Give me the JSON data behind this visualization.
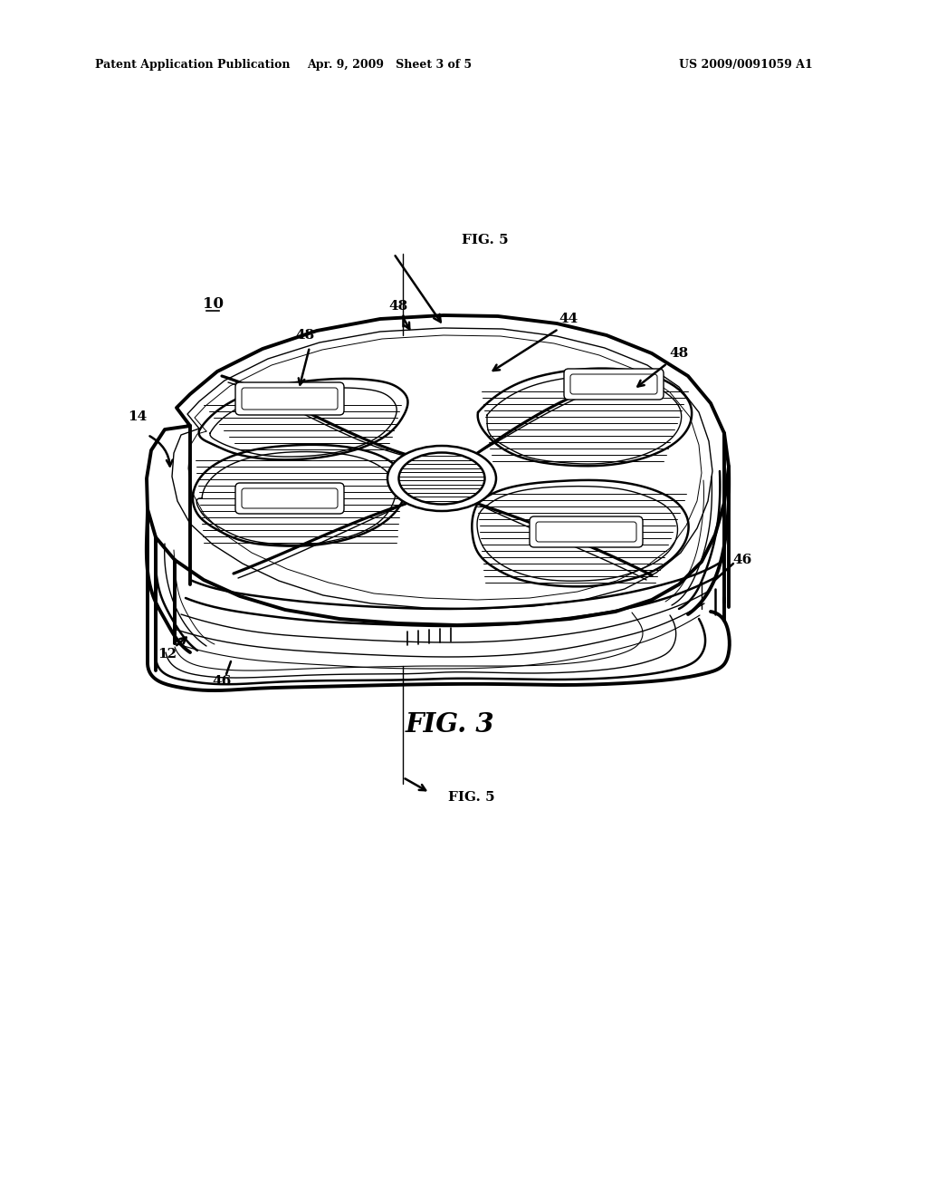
{
  "background_color": "#ffffff",
  "header_left": "Patent Application Publication",
  "header_center": "Apr. 9, 2009   Sheet 3 of 5",
  "header_right": "US 2009/0091059 A1",
  "line_color": "#000000",
  "lw_thick": 2.8,
  "lw_med": 1.8,
  "lw_thin": 1.0,
  "lw_shade": 0.7
}
